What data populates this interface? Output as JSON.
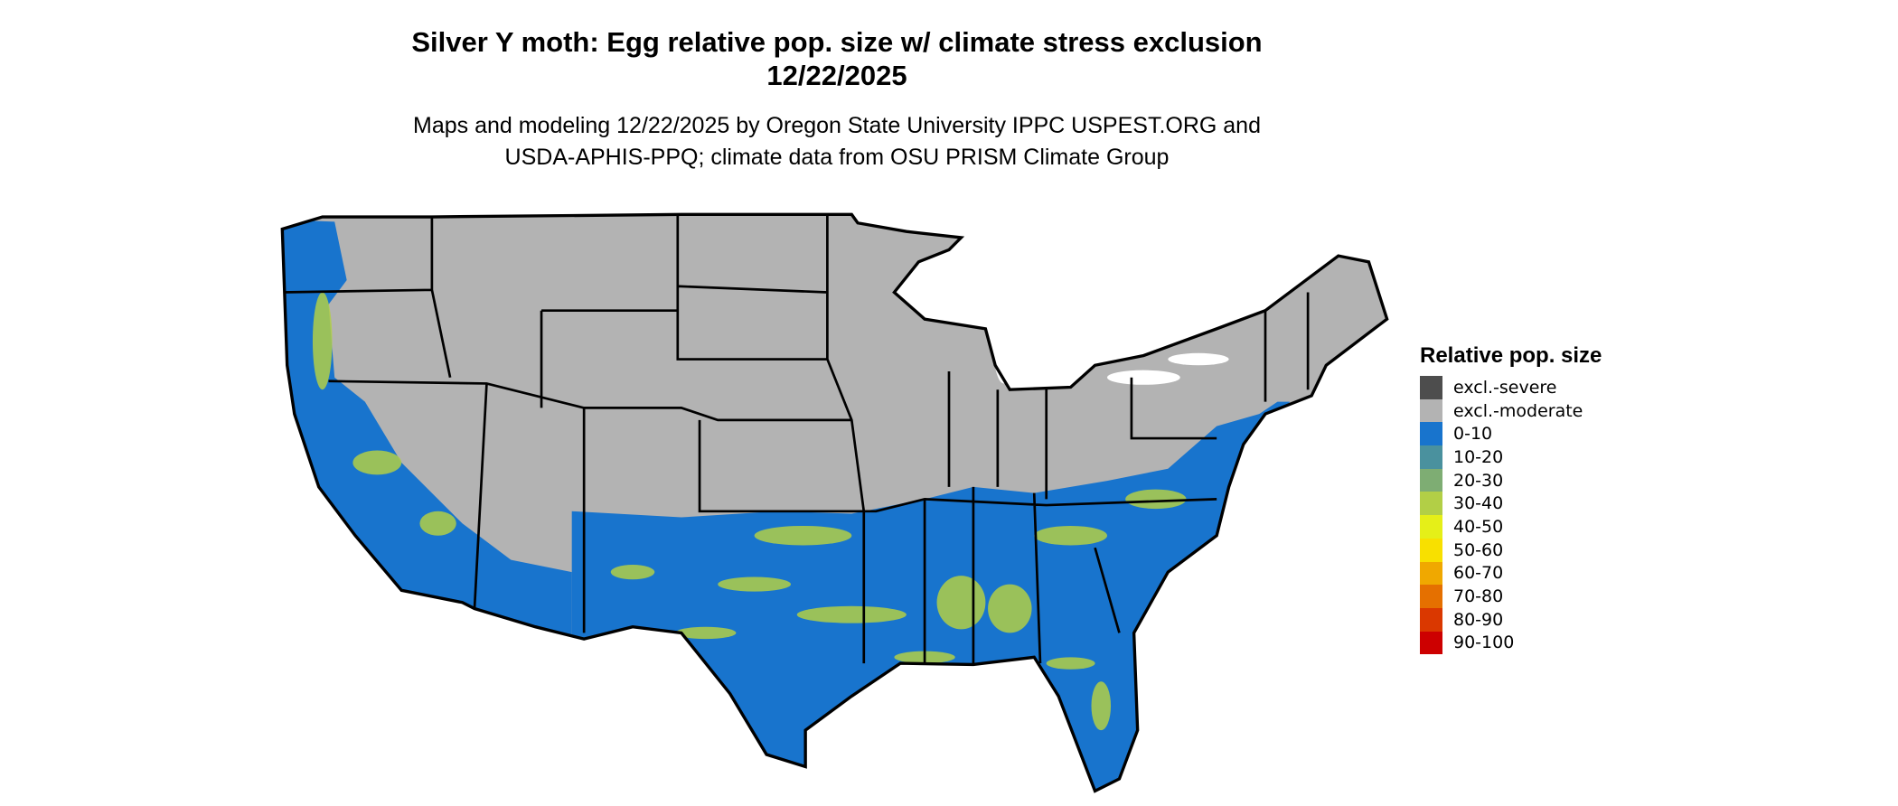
{
  "header": {
    "title_line1": "Silver Y moth: Egg relative pop. size w/ climate stress exclusion",
    "title_line2": "12/22/2025",
    "subtitle_line1": "Maps and modeling 12/22/2025 by Oregon State University IPPC USPEST.ORG and",
    "subtitle_line2": "USDA-APHIS-PPQ; climate data from OSU PRISM Climate Group"
  },
  "map": {
    "region": "Contiguous United States",
    "dominant_category_north": "excl.-moderate",
    "dominant_category_south": "0-10",
    "secondary_category_south": "30-40"
  },
  "legend": {
    "title": "Relative pop. size",
    "items": [
      {
        "label": "excl.-severe",
        "color": "#4d4d4d"
      },
      {
        "label": "excl.-moderate",
        "color": "#b3b3b3"
      },
      {
        "label": "0-10",
        "color": "#1874cd"
      },
      {
        "label": "10-20",
        "color": "#4a919e"
      },
      {
        "label": "20-30",
        "color": "#7ead73"
      },
      {
        "label": "30-40",
        "color": "#b2cf46"
      },
      {
        "label": "40-50",
        "color": "#e5ef18"
      },
      {
        "label": "50-60",
        "color": "#f8e000"
      },
      {
        "label": "60-70",
        "color": "#f0a800"
      },
      {
        "label": "70-80",
        "color": "#e57000"
      },
      {
        "label": "80-90",
        "color": "#da3800"
      },
      {
        "label": "90-100",
        "color": "#cd0000"
      }
    ]
  }
}
